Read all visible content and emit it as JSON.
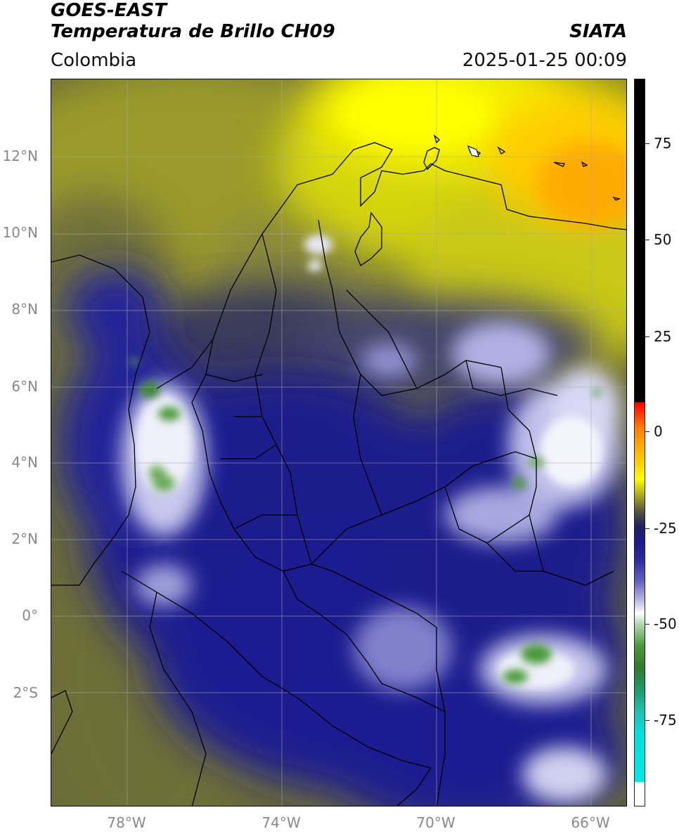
{
  "header": {
    "satellite": "GOES-EAST",
    "product": "Temperatura de Brillo CH09",
    "organization": "SIATA",
    "region": "Colombia",
    "datetime": "2025-01-25 00:09"
  },
  "map": {
    "lat_labels": [
      "12°N",
      "10°N",
      "8°N",
      "6°N",
      "4°N",
      "2°N",
      "0°",
      "2°S"
    ],
    "lon_labels": [
      "78°W",
      "74°W",
      "70°W",
      "66°W"
    ]
  },
  "colorbar": {
    "tick_labels": [
      "75",
      "50",
      "25",
      "0",
      "-25",
      "-50",
      "-75"
    ],
    "colors": {
      "black": "#000000",
      "red": "#ff0000",
      "orange": "#ff8000",
      "yellow": "#ffff00",
      "olive": "#a0a020",
      "navy": "#1a1a8c",
      "white": "#ffffff",
      "green": "#2f7a2f",
      "cyan": "#00e0e0"
    }
  }
}
